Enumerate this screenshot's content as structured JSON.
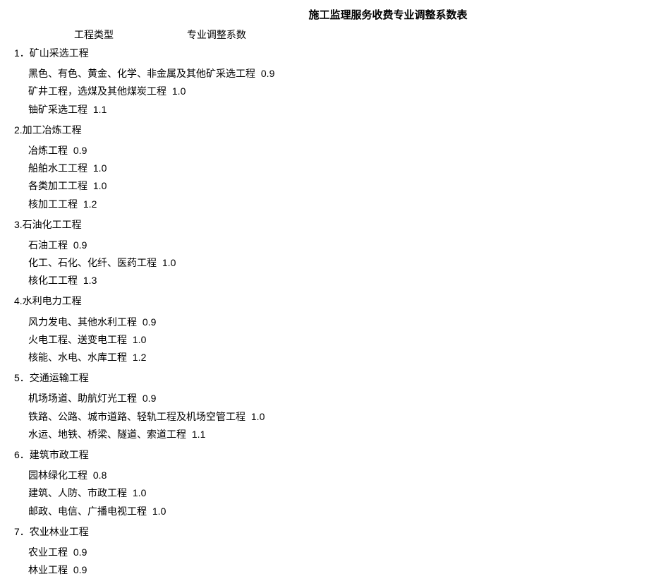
{
  "title": "施工监理服务收费专业调整系数表",
  "header": {
    "col1": "工程类型",
    "col2": "专业调整系数"
  },
  "sections": [
    {
      "label": "1．矿山采选工程",
      "items": [
        {
          "text": "黑色、有色、黄金、化学、非金属及其他矿采选工程",
          "value": "0.9"
        },
        {
          "text": "矿井工程，选煤及其他煤炭工程",
          "value": "1.0"
        },
        {
          "text": "铀矿采选工程",
          "value": "1.1"
        }
      ]
    },
    {
      "label": "2.加工冶炼工程",
      "items": [
        {
          "text": "冶炼工程",
          "value": "0.9"
        },
        {
          "text": "船舶水工工程",
          "value": "1.0"
        },
        {
          "text": "各类加工工程",
          "value": "1.0"
        },
        {
          "text": "核加工工程",
          "value": "1.2"
        }
      ]
    },
    {
      "label": "3.石油化工工程",
      "items": [
        {
          "text": "石油工程",
          "value": "0.9"
        },
        {
          "text": "化工、石化、化纤、医药工程",
          "value": "1.0"
        },
        {
          "text": "核化工工程",
          "value": "1.3"
        }
      ]
    },
    {
      "label": "4.水利电力工程",
      "items": [
        {
          "text": "风力发电、其他水利工程",
          "value": "0.9"
        },
        {
          "text": "火电工程、送变电工程",
          "value": "1.0"
        },
        {
          "text": "核能、水电、水库工程",
          "value": "1.2"
        }
      ]
    },
    {
      "label": "5．交通运输工程",
      "items": [
        {
          "text": "机场场道、助航灯光工程",
          "value": "0.9"
        },
        {
          "text": "铁路、公路、城市道路、轻轨工程及机场空管工程",
          "value": "1.0"
        },
        {
          "text": "水运、地铁、桥梁、隧道、索道工程",
          "value": "1.1"
        }
      ]
    },
    {
      "label": "6．建筑市政工程",
      "items": [
        {
          "text": "园林绿化工程",
          "value": "0.8"
        },
        {
          "text": "建筑、人防、市政工程",
          "value": "1.0"
        },
        {
          "text": "邮政、电信、广播电视工程",
          "value": "1.0"
        }
      ]
    },
    {
      "label": "7．农业林业工程",
      "items": [
        {
          "text": "农业工程",
          "value": "0.9"
        },
        {
          "text": "林业工程",
          "value": "0.9"
        }
      ]
    }
  ]
}
